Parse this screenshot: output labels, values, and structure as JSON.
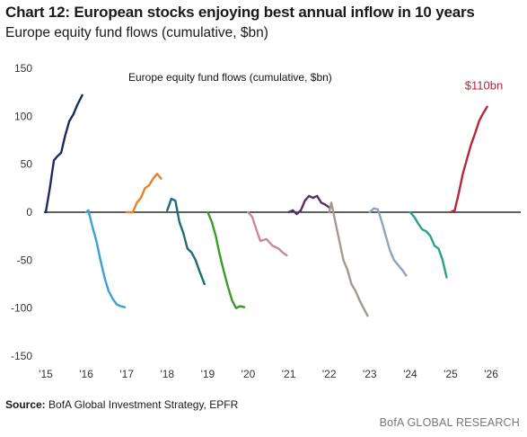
{
  "header": {
    "title": "Chart 12: European stocks enjoying best annual inflow in 10 years",
    "subtitle": "Europe equity fund flows (cumulative, $bn)"
  },
  "footer": {
    "source_label": "Source:",
    "source_text": " BofA Global Investment Strategy, EPFR",
    "brand": "BofA GLOBAL RESEARCH"
  },
  "chart_data": {
    "type": "line",
    "title": "Europe equity fund flows (cumulative, $bn)",
    "xlabel": "",
    "ylabel": "",
    "xlim": [
      2015,
      2026.2
    ],
    "ylim": [
      -150,
      150
    ],
    "yticks": [
      150,
      100,
      50,
      0,
      -50,
      -100,
      -150
    ],
    "xticks": [
      {
        "value": 2015,
        "label": "'15"
      },
      {
        "value": 2016,
        "label": "'16"
      },
      {
        "value": 2017,
        "label": "'17"
      },
      {
        "value": 2018,
        "label": "'18"
      },
      {
        "value": 2019,
        "label": "'19"
      },
      {
        "value": 2020,
        "label": "'20"
      },
      {
        "value": 2021,
        "label": "'21"
      },
      {
        "value": 2022,
        "label": "'22"
      },
      {
        "value": 2023,
        "label": "'23"
      },
      {
        "value": 2024,
        "label": "'24"
      },
      {
        "value": 2025,
        "label": "'25"
      },
      {
        "value": 2026,
        "label": "'26"
      }
    ],
    "grid": false,
    "annotations": [
      {
        "text": "$110bn",
        "x": 2025.35,
        "y": 128,
        "color": "#b5273b"
      }
    ],
    "series": [
      {
        "color": "#1c2b5e",
        "points": [
          [
            2015.0,
            0
          ],
          [
            2015.1,
            25
          ],
          [
            2015.2,
            54
          ],
          [
            2015.28,
            58
          ],
          [
            2015.38,
            62
          ],
          [
            2015.48,
            80
          ],
          [
            2015.58,
            95
          ],
          [
            2015.68,
            102
          ],
          [
            2015.78,
            112
          ],
          [
            2015.9,
            122
          ]
        ]
      },
      {
        "color": "#3aa0d6",
        "points": [
          [
            2016.0,
            0
          ],
          [
            2016.05,
            2
          ],
          [
            2016.15,
            -15
          ],
          [
            2016.25,
            -30
          ],
          [
            2016.35,
            -50
          ],
          [
            2016.45,
            -68
          ],
          [
            2016.55,
            -82
          ],
          [
            2016.65,
            -90
          ],
          [
            2016.75,
            -96
          ],
          [
            2016.85,
            -98
          ],
          [
            2016.95,
            -99
          ]
        ]
      },
      {
        "color": "#e5822b",
        "points": [
          [
            2017.0,
            0
          ],
          [
            2017.15,
            0
          ],
          [
            2017.25,
            10
          ],
          [
            2017.35,
            15
          ],
          [
            2017.45,
            25
          ],
          [
            2017.55,
            28
          ],
          [
            2017.65,
            35
          ],
          [
            2017.75,
            40
          ],
          [
            2017.85,
            35
          ]
        ]
      },
      {
        "color": "#1e6b78",
        "points": [
          [
            2018.0,
            2
          ],
          [
            2018.1,
            14
          ],
          [
            2018.2,
            12
          ],
          [
            2018.3,
            -10
          ],
          [
            2018.4,
            -22
          ],
          [
            2018.5,
            -38
          ],
          [
            2018.6,
            -42
          ],
          [
            2018.7,
            -50
          ],
          [
            2018.8,
            -62
          ],
          [
            2018.92,
            -75
          ]
        ]
      },
      {
        "color": "#3c9a2a",
        "points": [
          [
            2019.0,
            0
          ],
          [
            2019.1,
            -10
          ],
          [
            2019.2,
            -25
          ],
          [
            2019.3,
            -45
          ],
          [
            2019.4,
            -62
          ],
          [
            2019.5,
            -78
          ],
          [
            2019.6,
            -92
          ],
          [
            2019.7,
            -100
          ],
          [
            2019.8,
            -98
          ],
          [
            2019.9,
            -99
          ]
        ]
      },
      {
        "color": "#c48aa0",
        "points": [
          [
            2020.0,
            0
          ],
          [
            2020.1,
            -5
          ],
          [
            2020.2,
            -18
          ],
          [
            2020.3,
            -30
          ],
          [
            2020.45,
            -28
          ],
          [
            2020.6,
            -35
          ],
          [
            2020.75,
            -38
          ],
          [
            2020.85,
            -42
          ],
          [
            2020.95,
            -45
          ]
        ]
      },
      {
        "color": "#5b2d6b",
        "points": [
          [
            2021.0,
            0
          ],
          [
            2021.1,
            2
          ],
          [
            2021.2,
            -2
          ],
          [
            2021.3,
            2
          ],
          [
            2021.4,
            12
          ],
          [
            2021.5,
            17
          ],
          [
            2021.6,
            15
          ],
          [
            2021.7,
            17
          ],
          [
            2021.8,
            10
          ],
          [
            2021.9,
            8
          ],
          [
            2022.0,
            5
          ]
        ]
      },
      {
        "color": "#a59892",
        "points": [
          [
            2022.0,
            0
          ],
          [
            2022.05,
            10
          ],
          [
            2022.15,
            -10
          ],
          [
            2022.25,
            -30
          ],
          [
            2022.35,
            -50
          ],
          [
            2022.45,
            -60
          ],
          [
            2022.55,
            -75
          ],
          [
            2022.65,
            -82
          ],
          [
            2022.75,
            -92
          ],
          [
            2022.85,
            -100
          ],
          [
            2022.95,
            -108
          ]
        ]
      },
      {
        "color": "#8fa3c2",
        "points": [
          [
            2023.0,
            0
          ],
          [
            2023.1,
            4
          ],
          [
            2023.2,
            3
          ],
          [
            2023.3,
            -10
          ],
          [
            2023.4,
            -25
          ],
          [
            2023.5,
            -40
          ],
          [
            2023.6,
            -50
          ],
          [
            2023.7,
            -55
          ],
          [
            2023.8,
            -60
          ],
          [
            2023.9,
            -66
          ]
        ]
      },
      {
        "color": "#2f9e8f",
        "points": [
          [
            2024.0,
            0
          ],
          [
            2024.1,
            -5
          ],
          [
            2024.2,
            -12
          ],
          [
            2024.3,
            -18
          ],
          [
            2024.4,
            -20
          ],
          [
            2024.5,
            -25
          ],
          [
            2024.6,
            -35
          ],
          [
            2024.7,
            -38
          ],
          [
            2024.8,
            -50
          ],
          [
            2024.9,
            -68
          ]
        ]
      },
      {
        "color": "#b5273b",
        "points": [
          [
            2025.0,
            0
          ],
          [
            2025.1,
            2
          ],
          [
            2025.2,
            20
          ],
          [
            2025.3,
            40
          ],
          [
            2025.4,
            55
          ],
          [
            2025.5,
            70
          ],
          [
            2025.6,
            82
          ],
          [
            2025.7,
            95
          ],
          [
            2025.8,
            103
          ],
          [
            2025.9,
            110
          ]
        ]
      }
    ]
  }
}
